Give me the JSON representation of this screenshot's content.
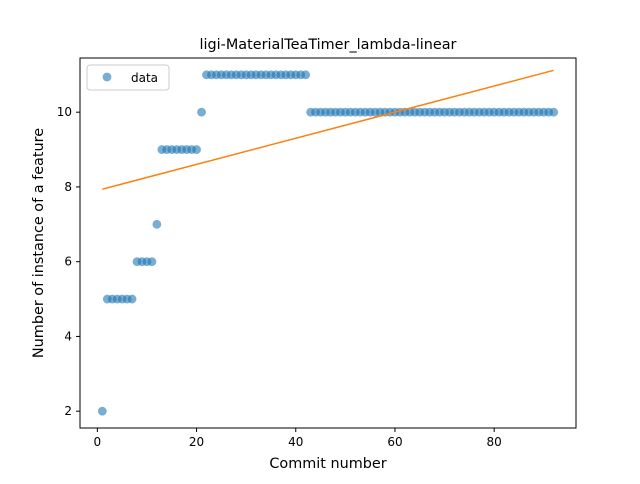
{
  "chart_data": {
    "type": "scatter",
    "title": "ligi-MaterialTeaTimer_lambda-linear",
    "xlabel": "Commit number",
    "ylabel": "Number of instance of a feature",
    "xlim": [
      -3.5,
      96.5
    ],
    "ylim": [
      1.55,
      11.45
    ],
    "x_ticks": [
      0,
      20,
      40,
      60,
      80
    ],
    "y_ticks": [
      2,
      4,
      6,
      8,
      10
    ],
    "grid": false,
    "legend_position": "top-left",
    "series": [
      {
        "name": "data",
        "kind": "points",
        "color": "#1f77b4",
        "points": [
          [
            1,
            2
          ],
          [
            2,
            5
          ],
          [
            3,
            5
          ],
          [
            4,
            5
          ],
          [
            5,
            5
          ],
          [
            6,
            5
          ],
          [
            7,
            5
          ],
          [
            8,
            6
          ],
          [
            9,
            6
          ],
          [
            10,
            6
          ],
          [
            11,
            6
          ],
          [
            12,
            7
          ],
          [
            13,
            9
          ],
          [
            14,
            9
          ],
          [
            15,
            9
          ],
          [
            16,
            9
          ],
          [
            17,
            9
          ],
          [
            18,
            9
          ],
          [
            19,
            9
          ],
          [
            20,
            9
          ],
          [
            21,
            10
          ],
          [
            22,
            11
          ],
          [
            23,
            11
          ],
          [
            24,
            11
          ],
          [
            25,
            11
          ],
          [
            26,
            11
          ],
          [
            27,
            11
          ],
          [
            28,
            11
          ],
          [
            29,
            11
          ],
          [
            30,
            11
          ],
          [
            31,
            11
          ],
          [
            32,
            11
          ],
          [
            33,
            11
          ],
          [
            34,
            11
          ],
          [
            35,
            11
          ],
          [
            36,
            11
          ],
          [
            37,
            11
          ],
          [
            38,
            11
          ],
          [
            39,
            11
          ],
          [
            40,
            11
          ],
          [
            41,
            11
          ],
          [
            42,
            11
          ],
          [
            43,
            10
          ],
          [
            44,
            10
          ],
          [
            45,
            10
          ],
          [
            46,
            10
          ],
          [
            47,
            10
          ],
          [
            48,
            10
          ],
          [
            49,
            10
          ],
          [
            50,
            10
          ],
          [
            51,
            10
          ],
          [
            52,
            10
          ],
          [
            53,
            10
          ],
          [
            54,
            10
          ],
          [
            55,
            10
          ],
          [
            56,
            10
          ],
          [
            57,
            10
          ],
          [
            58,
            10
          ],
          [
            59,
            10
          ],
          [
            60,
            10
          ],
          [
            61,
            10
          ],
          [
            62,
            10
          ],
          [
            63,
            10
          ],
          [
            64,
            10
          ],
          [
            65,
            10
          ],
          [
            66,
            10
          ],
          [
            67,
            10
          ],
          [
            68,
            10
          ],
          [
            69,
            10
          ],
          [
            70,
            10
          ],
          [
            71,
            10
          ],
          [
            72,
            10
          ],
          [
            73,
            10
          ],
          [
            74,
            10
          ],
          [
            75,
            10
          ],
          [
            76,
            10
          ],
          [
            77,
            10
          ],
          [
            78,
            10
          ],
          [
            79,
            10
          ],
          [
            80,
            10
          ],
          [
            81,
            10
          ],
          [
            82,
            10
          ],
          [
            83,
            10
          ],
          [
            84,
            10
          ],
          [
            85,
            10
          ],
          [
            86,
            10
          ],
          [
            87,
            10
          ],
          [
            88,
            10
          ],
          [
            89,
            10
          ],
          [
            90,
            10
          ],
          [
            91,
            10
          ],
          [
            92,
            10
          ]
        ]
      },
      {
        "kind": "line",
        "color": "#ff7f0e",
        "points": [
          [
            1,
            7.94
          ],
          [
            92,
            11.12
          ]
        ]
      }
    ]
  }
}
